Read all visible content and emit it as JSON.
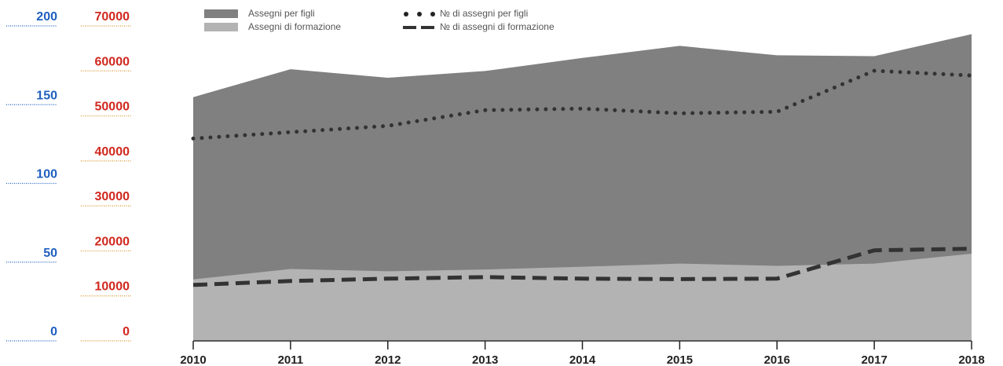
{
  "chart_data": {
    "type": "area",
    "x": [
      "2010",
      "2011",
      "2012",
      "2013",
      "2014",
      "2015",
      "2016",
      "2017",
      "2018"
    ],
    "series": [
      {
        "name": "Assegni per figli",
        "type": "area",
        "axis": "red",
        "values": [
          54000,
          60200,
          58300,
          59800,
          62700,
          65400,
          63300,
          63100,
          68000
        ],
        "color": "#808080"
      },
      {
        "name": "Assegni di formazione",
        "type": "area",
        "axis": "red",
        "values": [
          13500,
          15800,
          15300,
          15700,
          16300,
          17000,
          16500,
          17000,
          19200
        ],
        "color": "#b3b3b3"
      },
      {
        "name": "№ di assegni per figli",
        "type": "line",
        "style": "dotted",
        "axis": "blue",
        "values": [
          128,
          132,
          136,
          146,
          147,
          144,
          145,
          171,
          168
        ],
        "color": "#333333"
      },
      {
        "name": "№ di assegni di formazione",
        "type": "line",
        "style": "dashed",
        "axis": "blue",
        "values": [
          35,
          37.5,
          39,
          40,
          39,
          38.7,
          39,
          57,
          58
        ],
        "color": "#333333"
      }
    ],
    "y_left_blue": {
      "ticks": [
        "0",
        "50",
        "100",
        "150",
        "200"
      ],
      "ylim": [
        0,
        200
      ],
      "color": "#1f5fbf"
    },
    "y_left_red": {
      "ticks": [
        "0",
        "10000",
        "20000",
        "30000",
        "40000",
        "50000",
        "60000",
        "70000"
      ],
      "ylim": [
        0,
        70000
      ],
      "color": "#d0281e"
    },
    "legend": [
      {
        "label": "Assegni per figli",
        "swatch": "area",
        "color": "#808080"
      },
      {
        "label": "Assegni di formazione",
        "swatch": "area",
        "color": "#b3b3b3"
      },
      {
        "label": "№ di assegni per figli",
        "swatch": "dotted",
        "color": "#222222"
      },
      {
        "label": "№ di assegni di formazione",
        "swatch": "dashed",
        "color": "#333333"
      }
    ],
    "legend_position": "top-center",
    "grid": false
  }
}
